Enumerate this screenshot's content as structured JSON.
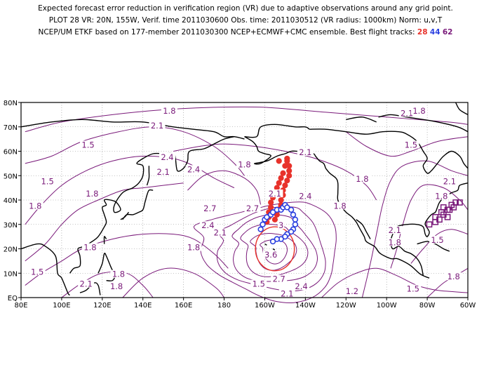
{
  "header": {
    "line1": "Expected forecast error reduction in verification region (VR) due to adaptive observations around any grid point.",
    "line2": "PLOT 28 VR: 20N, 155W, Verif. time 2011030600 Obs. time: 2011030512 (VR radius: 1000km) Norm: u,v,T",
    "line3_prefix": "NCEP/UM ETKF based on 177-member 2011030300 NCEP+ECMWF+CMC ensemble. Best flight tracks:",
    "tracks": [
      "28",
      "44",
      "62"
    ]
  },
  "colors": {
    "contour": "#7a1a7a",
    "track_28": "#e8322b",
    "track_44": "#2a3fe0",
    "track_62": "#7a1a7a",
    "verification_circle": "#e8322b",
    "coast": "#000000",
    "grid": "#888888"
  },
  "map": {
    "lon_range": [
      80,
      300
    ],
    "lat_range": [
      0,
      80
    ],
    "x_ticks": [
      {
        "lon": 80,
        "label": "80E"
      },
      {
        "lon": 100,
        "label": "100E"
      },
      {
        "lon": 120,
        "label": "120E"
      },
      {
        "lon": 140,
        "label": "140E"
      },
      {
        "lon": 160,
        "label": "160E"
      },
      {
        "lon": 180,
        "label": "180"
      },
      {
        "lon": 200,
        "label": "160W"
      },
      {
        "lon": 220,
        "label": "140W"
      },
      {
        "lon": 240,
        "label": "120W"
      },
      {
        "lon": 260,
        "label": "100W"
      },
      {
        "lon": 280,
        "label": "80W"
      },
      {
        "lon": 300,
        "label": "60W"
      }
    ],
    "y_ticks": [
      {
        "lat": 0,
        "label": "EQ"
      },
      {
        "lat": 10,
        "label": "10N"
      },
      {
        "lat": 20,
        "label": "20N"
      },
      {
        "lat": 30,
        "label": "30N"
      },
      {
        "lat": 40,
        "label": "40N"
      },
      {
        "lat": 50,
        "label": "50N"
      },
      {
        "lat": 60,
        "label": "60N"
      },
      {
        "lat": 70,
        "label": "70N"
      },
      {
        "lat": 80,
        "label": "80N"
      }
    ],
    "verification_region": {
      "lat": 20,
      "lon": 205,
      "radius_km": 1000
    },
    "contour_labels": [
      {
        "t": "1.8",
        "lon": 153,
        "lat": 76
      },
      {
        "t": "2.1",
        "lon": 147,
        "lat": 70
      },
      {
        "t": "1.5",
        "lon": 113,
        "lat": 62
      },
      {
        "t": "2.4",
        "lon": 152,
        "lat": 57
      },
      {
        "t": "2.1",
        "lon": 150,
        "lat": 51
      },
      {
        "t": "2.4",
        "lon": 165,
        "lat": 52
      },
      {
        "t": "1.8",
        "lon": 190,
        "lat": 54
      },
      {
        "t": "2.1",
        "lon": 220,
        "lat": 59
      },
      {
        "t": "2.1",
        "lon": 270,
        "lat": 75
      },
      {
        "t": "1.8",
        "lon": 276,
        "lat": 76
      },
      {
        "t": "1.5",
        "lon": 93,
        "lat": 47
      },
      {
        "t": "1.8",
        "lon": 115,
        "lat": 42
      },
      {
        "t": "1.8",
        "lon": 87,
        "lat": 37
      },
      {
        "t": "2.7",
        "lon": 173,
        "lat": 36
      },
      {
        "t": "2.7",
        "lon": 194,
        "lat": 36
      },
      {
        "t": "2.4",
        "lon": 172,
        "lat": 29
      },
      {
        "t": "2.1",
        "lon": 178,
        "lat": 26
      },
      {
        "t": "1.8",
        "lon": 165,
        "lat": 20
      },
      {
        "t": "1.8",
        "lon": 114,
        "lat": 20
      },
      {
        "t": "3",
        "lon": 208,
        "lat": 29
      },
      {
        "t": "3.6",
        "lon": 203,
        "lat": 17
      },
      {
        "t": "2.4",
        "lon": 220,
        "lat": 41
      },
      {
        "t": "2.1",
        "lon": 205,
        "lat": 42
      },
      {
        "t": "2.7",
        "lon": 207,
        "lat": 7
      },
      {
        "t": "2.4",
        "lon": 218,
        "lat": 4
      },
      {
        "t": "2.1",
        "lon": 211,
        "lat": 1
      },
      {
        "t": "1.8",
        "lon": 237,
        "lat": 37
      },
      {
        "t": "1.8",
        "lon": 248,
        "lat": 48
      },
      {
        "t": "1.5",
        "lon": 272,
        "lat": 62
      },
      {
        "t": "2.1",
        "lon": 291,
        "lat": 47
      },
      {
        "t": "1.8",
        "lon": 287,
        "lat": 41
      },
      {
        "t": "2.1",
        "lon": 264,
        "lat": 27
      },
      {
        "t": "1.8",
        "lon": 264,
        "lat": 22
      },
      {
        "t": "1.5",
        "lon": 285,
        "lat": 23
      },
      {
        "t": "1.8",
        "lon": 293,
        "lat": 8
      },
      {
        "t": "1.5",
        "lon": 197,
        "lat": 5
      },
      {
        "t": "1.2",
        "lon": 243,
        "lat": 2
      },
      {
        "t": "1.5",
        "lon": 273,
        "lat": 3
      },
      {
        "t": "1.5",
        "lon": 88,
        "lat": 10
      },
      {
        "t": "1.8",
        "lon": 128,
        "lat": 9
      },
      {
        "t": "2.1",
        "lon": 112,
        "lat": 5
      },
      {
        "t": "1.8",
        "lon": 127,
        "lat": 4
      }
    ],
    "track_28": [
      [
        211,
        56
      ],
      [
        212,
        54
      ],
      [
        212,
        52
      ],
      [
        212,
        50
      ],
      [
        211,
        48
      ],
      [
        210,
        46
      ],
      [
        209,
        44
      ],
      [
        209,
        42
      ],
      [
        208,
        40
      ],
      [
        208,
        38
      ],
      [
        207,
        36
      ],
      [
        206,
        34
      ],
      [
        205,
        32
      ],
      [
        208,
        37
      ],
      [
        207,
        56
      ],
      [
        211,
        57
      ],
      [
        210,
        54
      ],
      [
        209,
        51
      ],
      [
        208,
        49
      ],
      [
        207,
        47
      ],
      [
        206,
        45
      ],
      [
        205,
        43
      ],
      [
        204,
        41
      ],
      [
        203,
        39
      ],
      [
        203,
        37
      ],
      [
        202,
        35
      ],
      [
        202,
        33
      ],
      [
        201,
        31
      ]
    ],
    "track_44": [
      [
        198,
        28
      ],
      [
        199,
        30
      ],
      [
        200,
        32
      ],
      [
        201,
        33
      ],
      [
        203,
        34
      ],
      [
        204,
        35
      ],
      [
        206,
        36
      ],
      [
        208,
        36
      ],
      [
        209,
        37
      ],
      [
        210,
        38
      ],
      [
        211,
        37
      ],
      [
        213,
        36
      ],
      [
        214,
        34
      ],
      [
        215,
        32
      ],
      [
        215,
        30
      ],
      [
        214,
        28
      ],
      [
        213,
        27
      ],
      [
        211,
        26
      ],
      [
        210,
        25
      ],
      [
        208,
        24
      ],
      [
        206,
        24
      ],
      [
        204,
        23
      ]
    ],
    "track_62": [
      [
        281,
        30
      ],
      [
        284,
        31
      ],
      [
        286,
        32
      ],
      [
        288,
        34
      ],
      [
        290,
        36
      ],
      [
        292,
        38
      ],
      [
        294,
        39
      ],
      [
        284,
        33
      ],
      [
        287,
        35
      ],
      [
        290,
        33
      ],
      [
        291,
        36
      ],
      [
        293,
        37
      ],
      [
        296,
        39
      ],
      [
        288,
        37
      ]
    ]
  }
}
